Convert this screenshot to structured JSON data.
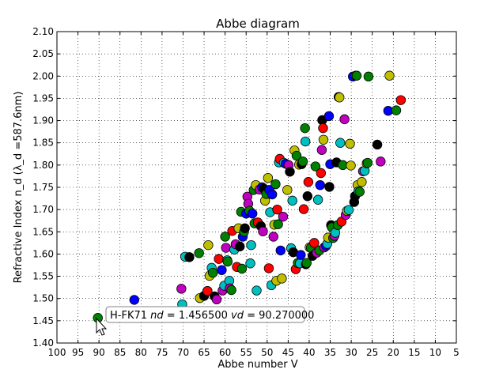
{
  "chart_data": {
    "type": "scatter",
    "title": "Abbe diagram",
    "xlabel": "Abbe number V",
    "ylabel": "Refractive Index n_d  (λ_d =587.6nm)",
    "xlim": [
      100,
      5
    ],
    "ylim": [
      1.4,
      2.1
    ],
    "x_ticks": [
      100,
      95,
      90,
      85,
      80,
      75,
      70,
      65,
      60,
      55,
      50,
      45,
      40,
      35,
      30,
      25,
      20,
      15,
      10,
      5
    ],
    "y_ticks": [
      1.4,
      1.45,
      1.5,
      1.55,
      1.6,
      1.65,
      1.7,
      1.75,
      1.8,
      1.85,
      1.9,
      1.95,
      2.0,
      2.05,
      2.1
    ],
    "grid": true,
    "colors": {
      "b": "#0000ff",
      "g": "#008000",
      "r": "#ff0000",
      "c": "#00bfbf",
      "m": "#bf00bf",
      "y": "#bfbf00",
      "k": "#000000"
    },
    "points": [
      {
        "x": 90.27,
        "y": 1.4565,
        "c": "g"
      },
      {
        "x": 81.6,
        "y": 1.497,
        "c": "b"
      },
      {
        "x": 70.2,
        "y": 1.487,
        "c": "c"
      },
      {
        "x": 70.4,
        "y": 1.522,
        "c": "m"
      },
      {
        "x": 69.5,
        "y": 1.594,
        "c": "c"
      },
      {
        "x": 68.5,
        "y": 1.593,
        "c": "k"
      },
      {
        "x": 66.2,
        "y": 1.602,
        "c": "g"
      },
      {
        "x": 66.0,
        "y": 1.501,
        "c": "y"
      },
      {
        "x": 65.0,
        "y": 1.506,
        "c": "k"
      },
      {
        "x": 64.2,
        "y": 1.517,
        "c": "c"
      },
      {
        "x": 64.2,
        "y": 1.517,
        "c": "r"
      },
      {
        "x": 63.7,
        "y": 1.551,
        "c": "y"
      },
      {
        "x": 63.2,
        "y": 1.569,
        "c": "c"
      },
      {
        "x": 62.9,
        "y": 1.558,
        "c": "g"
      },
      {
        "x": 62.5,
        "y": 1.505,
        "c": "k"
      },
      {
        "x": 62.0,
        "y": 1.498,
        "c": "m"
      },
      {
        "x": 61.5,
        "y": 1.589,
        "c": "r"
      },
      {
        "x": 64.0,
        "y": 1.62,
        "c": "y"
      },
      {
        "x": 60.8,
        "y": 1.564,
        "c": "b"
      },
      {
        "x": 60.6,
        "y": 1.518,
        "c": "m"
      },
      {
        "x": 60.2,
        "y": 1.529,
        "c": "c"
      },
      {
        "x": 60.0,
        "y": 1.639,
        "c": "g"
      },
      {
        "x": 59.8,
        "y": 1.614,
        "c": "m"
      },
      {
        "x": 59.5,
        "y": 1.586,
        "c": "c"
      },
      {
        "x": 59.4,
        "y": 1.583,
        "c": "g"
      },
      {
        "x": 59.0,
        "y": 1.54,
        "c": "c"
      },
      {
        "x": 58.9,
        "y": 1.523,
        "c": "m"
      },
      {
        "x": 58.5,
        "y": 1.519,
        "c": "g"
      },
      {
        "x": 58.3,
        "y": 1.652,
        "c": "r"
      },
      {
        "x": 57.8,
        "y": 1.61,
        "c": "c"
      },
      {
        "x": 57.5,
        "y": 1.622,
        "c": "m"
      },
      {
        "x": 57.2,
        "y": 1.571,
        "c": "r"
      },
      {
        "x": 56.8,
        "y": 1.658,
        "c": "y"
      },
      {
        "x": 56.5,
        "y": 1.617,
        "c": "k"
      },
      {
        "x": 56.2,
        "y": 1.695,
        "c": "g"
      },
      {
        "x": 56.0,
        "y": 1.567,
        "c": "g"
      },
      {
        "x": 55.8,
        "y": 1.639,
        "c": "b"
      },
      {
        "x": 55.5,
        "y": 1.65,
        "c": "g"
      },
      {
        "x": 55.3,
        "y": 1.658,
        "c": "k"
      },
      {
        "x": 55.0,
        "y": 1.691,
        "c": "b"
      },
      {
        "x": 54.7,
        "y": 1.729,
        "c": "m"
      },
      {
        "x": 54.5,
        "y": 1.713,
        "c": "m"
      },
      {
        "x": 54.2,
        "y": 1.697,
        "c": "g"
      },
      {
        "x": 54.0,
        "y": 1.579,
        "c": "c"
      },
      {
        "x": 53.8,
        "y": 1.62,
        "c": "c"
      },
      {
        "x": 53.5,
        "y": 1.691,
        "c": "b"
      },
      {
        "x": 53.2,
        "y": 1.744,
        "c": "g"
      },
      {
        "x": 53.0,
        "y": 1.669,
        "c": "g"
      },
      {
        "x": 52.7,
        "y": 1.755,
        "c": "y"
      },
      {
        "x": 52.5,
        "y": 1.518,
        "c": "c"
      },
      {
        "x": 52.2,
        "y": 1.671,
        "c": "r"
      },
      {
        "x": 51.8,
        "y": 1.745,
        "c": "m"
      },
      {
        "x": 51.5,
        "y": 1.663,
        "c": "k"
      },
      {
        "x": 51.2,
        "y": 1.75,
        "c": "b"
      },
      {
        "x": 51.0,
        "y": 1.651,
        "c": "m"
      },
      {
        "x": 50.8,
        "y": 1.747,
        "c": "k"
      },
      {
        "x": 50.5,
        "y": 1.72,
        "c": "y"
      },
      {
        "x": 50.2,
        "y": 1.735,
        "c": "g"
      },
      {
        "x": 49.8,
        "y": 1.771,
        "c": "y"
      },
      {
        "x": 49.6,
        "y": 1.568,
        "c": "r"
      },
      {
        "x": 49.5,
        "y": 1.744,
        "c": "b"
      },
      {
        "x": 49.3,
        "y": 1.694,
        "c": "c"
      },
      {
        "x": 49.0,
        "y": 1.53,
        "c": "c"
      },
      {
        "x": 48.8,
        "y": 1.734,
        "c": "b"
      },
      {
        "x": 48.5,
        "y": 1.639,
        "c": "m"
      },
      {
        "x": 48.3,
        "y": 1.666,
        "c": "y"
      },
      {
        "x": 48.0,
        "y": 1.757,
        "c": "g"
      },
      {
        "x": 47.8,
        "y": 1.54,
        "c": "y"
      },
      {
        "x": 47.6,
        "y": 1.7,
        "c": "r"
      },
      {
        "x": 47.4,
        "y": 1.667,
        "c": "g"
      },
      {
        "x": 47.2,
        "y": 1.806,
        "c": "c"
      },
      {
        "x": 47.0,
        "y": 1.814,
        "c": "r"
      },
      {
        "x": 46.8,
        "y": 1.608,
        "c": "b"
      },
      {
        "x": 46.5,
        "y": 1.545,
        "c": "y"
      },
      {
        "x": 46.2,
        "y": 1.684,
        "c": "m"
      },
      {
        "x": 46.0,
        "y": 1.805,
        "c": "c"
      },
      {
        "x": 45.6,
        "y": 1.803,
        "c": "b"
      },
      {
        "x": 45.2,
        "y": 1.744,
        "c": "y"
      },
      {
        "x": 44.9,
        "y": 1.8,
        "c": "m"
      },
      {
        "x": 44.6,
        "y": 1.785,
        "c": "k"
      },
      {
        "x": 44.3,
        "y": 1.613,
        "c": "c"
      },
      {
        "x": 44.0,
        "y": 1.72,
        "c": "c"
      },
      {
        "x": 43.8,
        "y": 1.604,
        "c": "k"
      },
      {
        "x": 43.5,
        "y": 1.833,
        "c": "y"
      },
      {
        "x": 43.2,
        "y": 1.566,
        "c": "r"
      },
      {
        "x": 43.0,
        "y": 1.821,
        "c": "g"
      },
      {
        "x": 42.7,
        "y": 1.58,
        "c": "g"
      },
      {
        "x": 42.4,
        "y": 1.801,
        "c": "y"
      },
      {
        "x": 42.2,
        "y": 1.579,
        "c": "c"
      },
      {
        "x": 42.0,
        "y": 1.598,
        "c": "b"
      },
      {
        "x": 41.8,
        "y": 1.802,
        "c": "k"
      },
      {
        "x": 41.5,
        "y": 1.808,
        "c": "g"
      },
      {
        "x": 41.3,
        "y": 1.701,
        "c": "r"
      },
      {
        "x": 41.0,
        "y": 1.883,
        "c": "g"
      },
      {
        "x": 40.9,
        "y": 1.853,
        "c": "c"
      },
      {
        "x": 40.8,
        "y": 1.577,
        "c": "k"
      },
      {
        "x": 40.6,
        "y": 1.58,
        "c": "g"
      },
      {
        "x": 40.4,
        "y": 1.73,
        "c": "k"
      },
      {
        "x": 40.2,
        "y": 1.762,
        "c": "r"
      },
      {
        "x": 39.9,
        "y": 1.615,
        "c": "y"
      },
      {
        "x": 39.6,
        "y": 1.614,
        "c": "g"
      },
      {
        "x": 39.2,
        "y": 1.596,
        "c": "k"
      },
      {
        "x": 38.8,
        "y": 1.625,
        "c": "r"
      },
      {
        "x": 38.5,
        "y": 1.797,
        "c": "g"
      },
      {
        "x": 38.2,
        "y": 1.603,
        "c": "m"
      },
      {
        "x": 37.9,
        "y": 1.722,
        "c": "c"
      },
      {
        "x": 37.6,
        "y": 1.608,
        "c": "g"
      },
      {
        "x": 37.4,
        "y": 1.755,
        "c": "b"
      },
      {
        "x": 37.2,
        "y": 1.782,
        "c": "r"
      },
      {
        "x": 37.0,
        "y": 1.834,
        "c": "m"
      },
      {
        "x": 36.9,
        "y": 1.901,
        "c": "k"
      },
      {
        "x": 36.7,
        "y": 1.883,
        "c": "r"
      },
      {
        "x": 36.6,
        "y": 1.857,
        "c": "y"
      },
      {
        "x": 36.4,
        "y": 1.615,
        "c": "m"
      },
      {
        "x": 36.0,
        "y": 1.618,
        "c": "b"
      },
      {
        "x": 35.7,
        "y": 1.623,
        "c": "c"
      },
      {
        "x": 35.5,
        "y": 1.637,
        "c": "y"
      },
      {
        "x": 35.3,
        "y": 1.91,
        "c": "b"
      },
      {
        "x": 35.2,
        "y": 1.751,
        "c": "k"
      },
      {
        "x": 35.0,
        "y": 1.802,
        "c": "b"
      },
      {
        "x": 34.8,
        "y": 1.665,
        "c": "k"
      },
      {
        "x": 34.6,
        "y": 1.66,
        "c": "g"
      },
      {
        "x": 34.3,
        "y": 1.636,
        "c": "g"
      },
      {
        "x": 34.0,
        "y": 1.641,
        "c": "m"
      },
      {
        "x": 33.8,
        "y": 1.648,
        "c": "c"
      },
      {
        "x": 33.5,
        "y": 1.806,
        "c": "k"
      },
      {
        "x": 33.2,
        "y": 1.665,
        "c": "g"
      },
      {
        "x": 33.0,
        "y": 1.953,
        "c": "k"
      },
      {
        "x": 32.8,
        "y": 1.952,
        "c": "y"
      },
      {
        "x": 32.6,
        "y": 1.85,
        "c": "c"
      },
      {
        "x": 32.3,
        "y": 1.673,
        "c": "r"
      },
      {
        "x": 32.0,
        "y": 1.8,
        "c": "g"
      },
      {
        "x": 31.6,
        "y": 1.903,
        "c": "m"
      },
      {
        "x": 31.3,
        "y": 1.688,
        "c": "m"
      },
      {
        "x": 31.0,
        "y": 1.697,
        "c": "y"
      },
      {
        "x": 30.6,
        "y": 1.699,
        "c": "c"
      },
      {
        "x": 30.3,
        "y": 1.848,
        "c": "y"
      },
      {
        "x": 30.1,
        "y": 1.799,
        "c": "y"
      },
      {
        "x": 29.6,
        "y": 1.999,
        "c": "b"
      },
      {
        "x": 29.3,
        "y": 1.717,
        "c": "k"
      },
      {
        "x": 29.1,
        "y": 1.73,
        "c": "k"
      },
      {
        "x": 28.9,
        "y": 2.001,
        "c": "y"
      },
      {
        "x": 28.7,
        "y": 2.001,
        "c": "g"
      },
      {
        "x": 28.5,
        "y": 1.755,
        "c": "y"
      },
      {
        "x": 28.3,
        "y": 1.741,
        "c": "c"
      },
      {
        "x": 28.0,
        "y": 1.74,
        "c": "g"
      },
      {
        "x": 27.5,
        "y": 1.762,
        "c": "y"
      },
      {
        "x": 27.2,
        "y": 1.786,
        "c": "m"
      },
      {
        "x": 26.8,
        "y": 1.787,
        "c": "c"
      },
      {
        "x": 26.3,
        "y": 1.804,
        "c": "y"
      },
      {
        "x": 26.1,
        "y": 1.805,
        "c": "g"
      },
      {
        "x": 25.9,
        "y": 1.999,
        "c": "g"
      },
      {
        "x": 23.8,
        "y": 1.846,
        "c": "k"
      },
      {
        "x": 23.0,
        "y": 1.808,
        "c": "m"
      },
      {
        "x": 21.2,
        "y": 1.922,
        "c": "b"
      },
      {
        "x": 20.9,
        "y": 2.001,
        "c": "y"
      },
      {
        "x": 19.3,
        "y": 1.923,
        "c": "g"
      },
      {
        "x": 18.2,
        "y": 1.946,
        "c": "r"
      }
    ],
    "annotation": {
      "name": "H-FK71",
      "nd_label": "nd",
      "nd": "1.456500",
      "vd_label": "vd",
      "vd": "90.270000"
    }
  }
}
